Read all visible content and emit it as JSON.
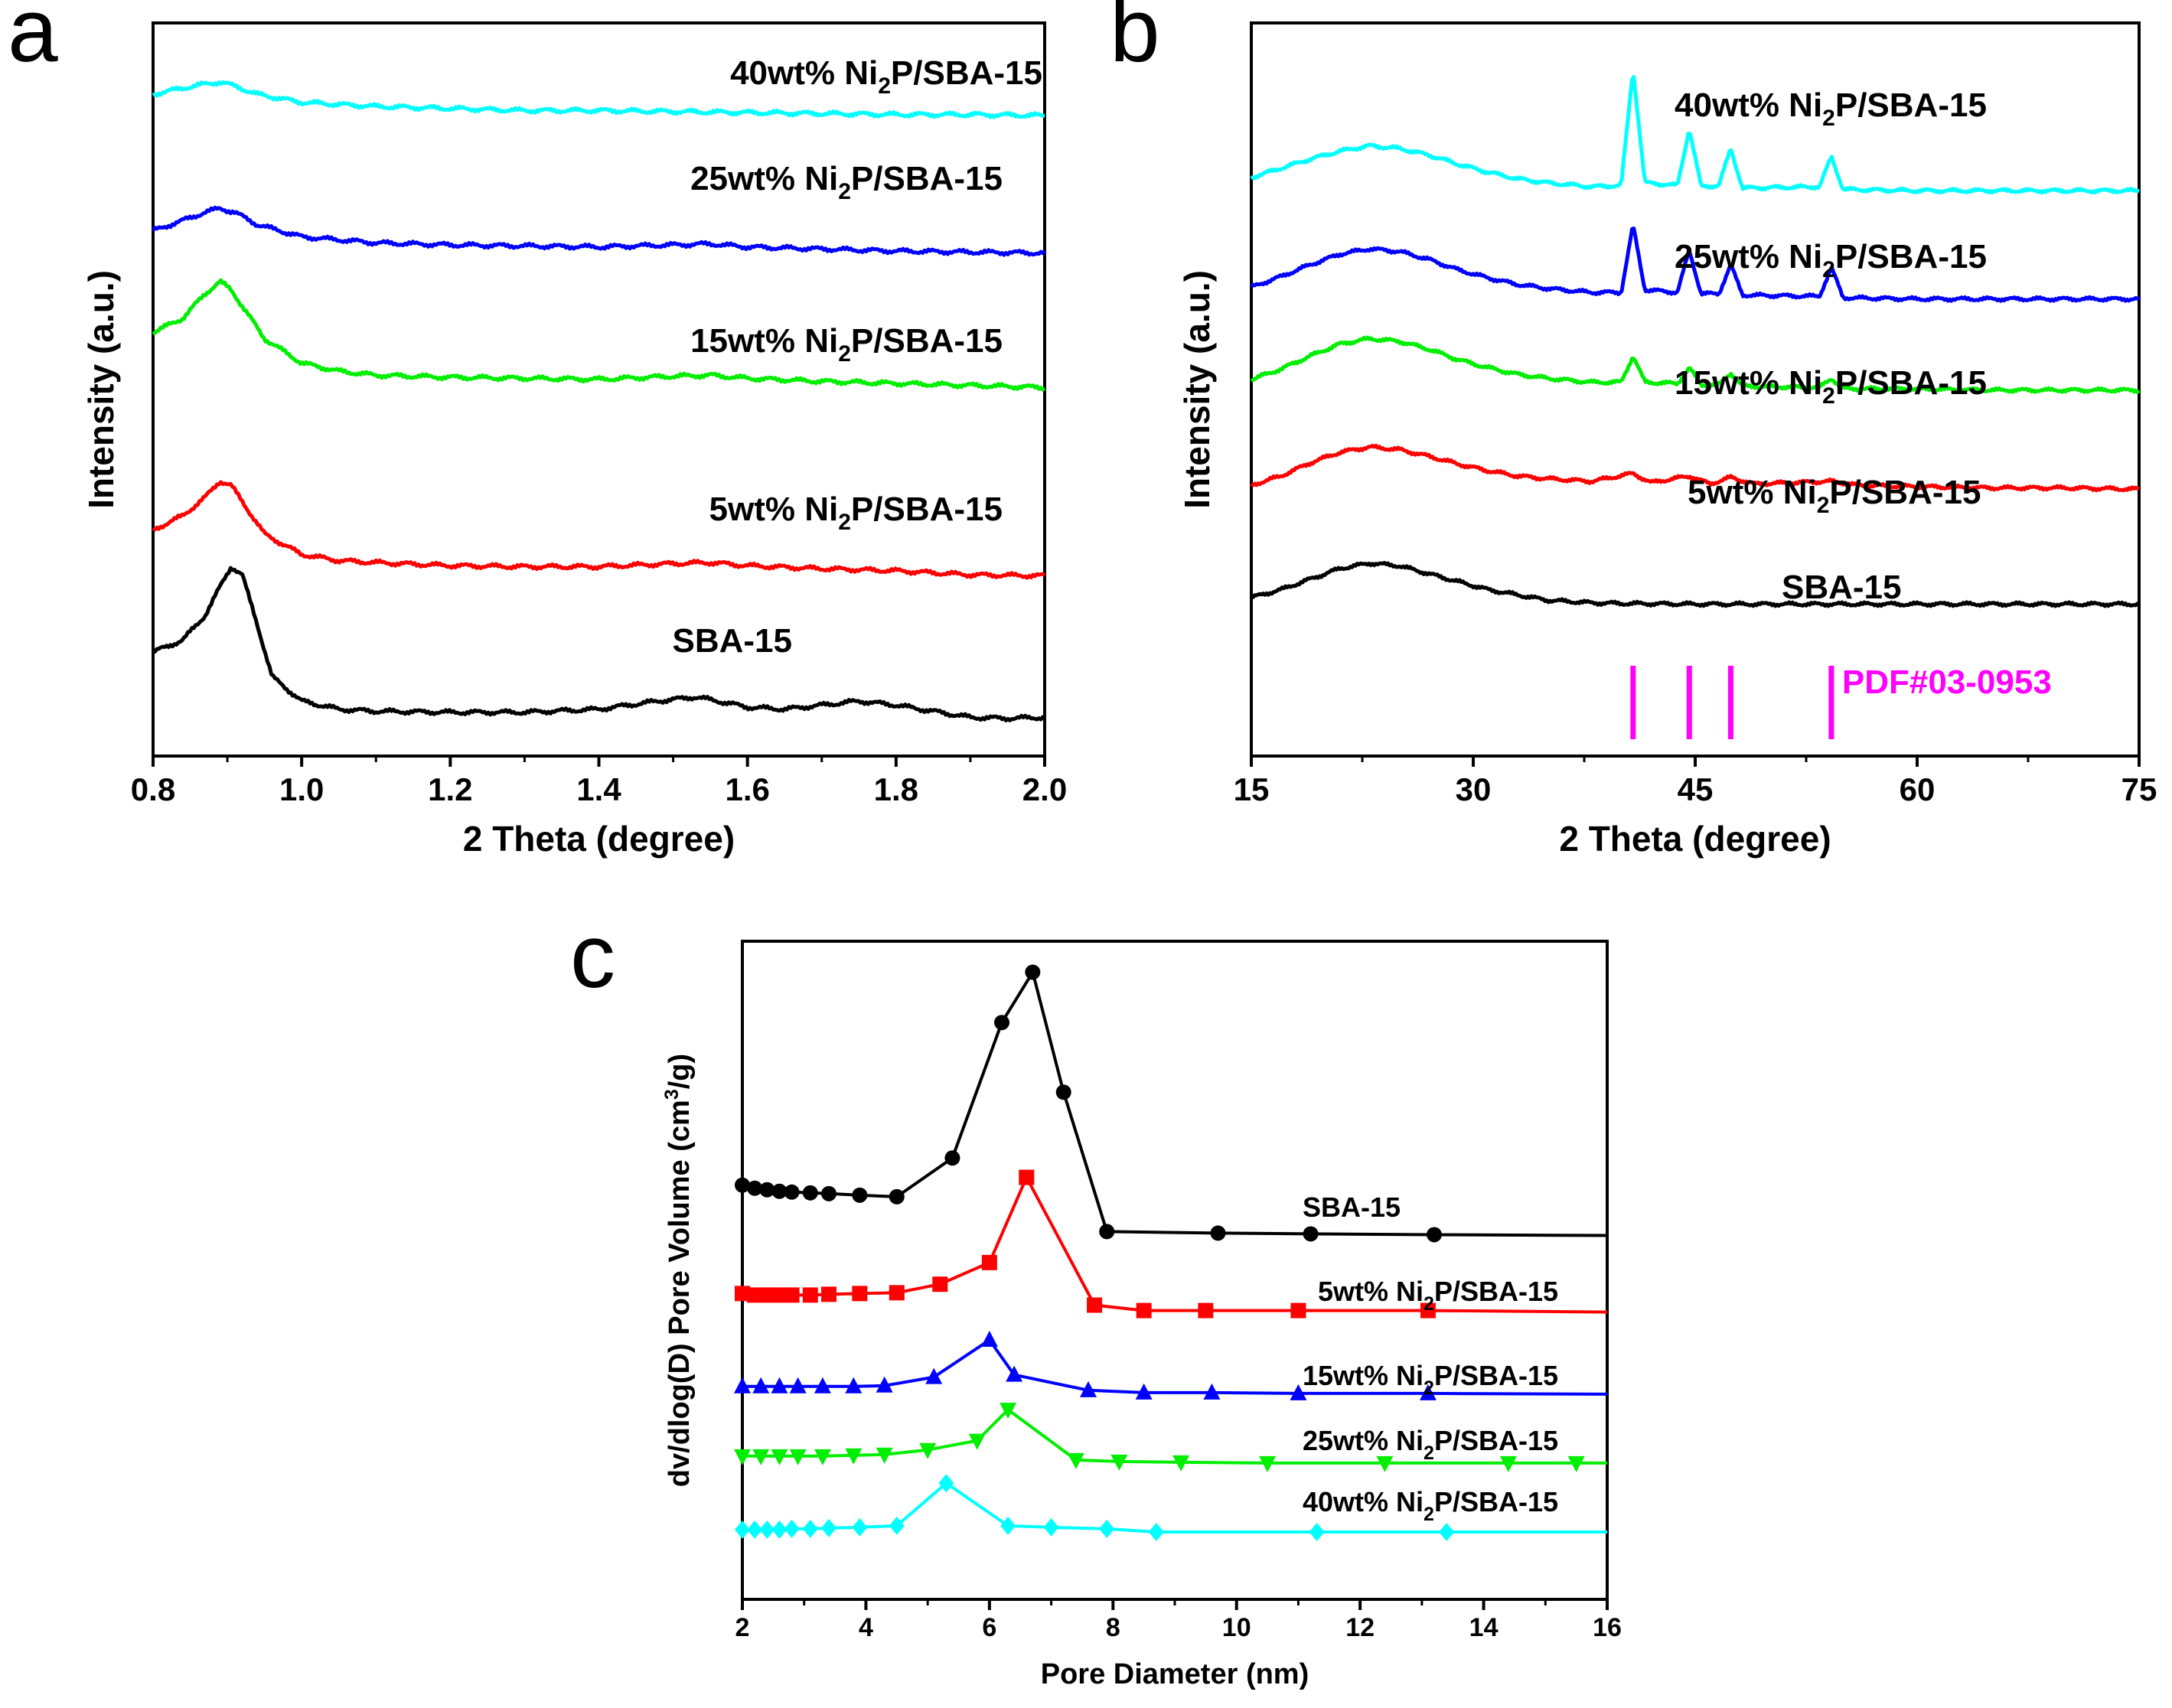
{
  "figure": {
    "panels": [
      {
        "letter": "a"
      },
      {
        "letter": "b"
      },
      {
        "letter": "c"
      }
    ]
  },
  "colors": {
    "SBA-15": "#000000",
    "5wt%": "#ff0000",
    "15wt%": "#00ee00",
    "25wt%": "#0000ff",
    "40wt%": "#00ffff",
    "pdf": "#ff00ff"
  },
  "chart_data": [
    {
      "panel": "a",
      "type": "line",
      "xlabel": "2 Theta (degree)",
      "ylabel": "Intensity (a.u.)",
      "xlim": [
        0.8,
        2.0
      ],
      "xticks": [
        "0.8",
        "1.0",
        "1.2",
        "1.4",
        "1.6",
        "1.8",
        "2.0"
      ],
      "y_units": "arbitrary (vertically offset)",
      "series": [
        {
          "label_pre": "",
          "label_sub": "",
          "label_post": "SBA-15",
          "color": "#000000",
          "x": [
            0.8,
            0.84,
            0.87,
            0.89,
            0.905,
            0.92,
            0.94,
            0.96,
            1.0,
            1.05,
            1.1,
            1.2,
            1.3,
            1.4,
            1.48,
            1.53,
            1.56,
            1.6,
            1.65,
            1.7,
            1.75,
            1.8,
            1.85,
            1.9,
            1.95,
            2.0
          ],
          "y": [
            0.36,
            0.42,
            0.54,
            0.68,
            0.78,
            0.74,
            0.5,
            0.24,
            0.12,
            0.08,
            0.07,
            0.065,
            0.065,
            0.08,
            0.12,
            0.14,
            0.12,
            0.09,
            0.08,
            0.1,
            0.12,
            0.1,
            0.07,
            0.04,
            0.035,
            0.04
          ]
        },
        {
          "label_pre": "5wt% Ni",
          "label_sub": "2",
          "label_post": "P/SBA-15",
          "color": "#ff0000",
          "x": [
            0.8,
            0.84,
            0.87,
            0.89,
            0.905,
            0.92,
            0.95,
            1.0,
            1.05,
            1.1,
            1.2,
            1.3,
            1.4,
            1.5,
            1.55,
            1.6,
            1.7,
            1.8,
            1.9,
            2.0
          ],
          "y": [
            0.96,
            1.03,
            1.12,
            1.2,
            1.18,
            1.1,
            0.94,
            0.84,
            0.81,
            0.8,
            0.785,
            0.78,
            0.78,
            0.795,
            0.8,
            0.785,
            0.77,
            0.76,
            0.74,
            0.735
          ]
        },
        {
          "label_pre": "15wt% Ni",
          "label_sub": "2",
          "label_post": "P/SBA-15",
          "color": "#00ee00",
          "x": [
            0.8,
            0.84,
            0.87,
            0.89,
            0.905,
            0.92,
            0.95,
            1.0,
            1.05,
            1.1,
            1.2,
            1.3,
            1.4,
            1.5,
            1.55,
            1.6,
            1.7,
            1.8,
            1.9,
            2.0
          ],
          "y": [
            1.93,
            2.0,
            2.12,
            2.18,
            2.14,
            2.06,
            1.9,
            1.78,
            1.74,
            1.72,
            1.71,
            1.705,
            1.7,
            1.715,
            1.72,
            1.705,
            1.69,
            1.68,
            1.67,
            1.66
          ]
        },
        {
          "label_pre": "25wt% Ni",
          "label_sub": "2",
          "label_post": "P/SBA-15",
          "color": "#0000ff",
          "x": [
            0.8,
            0.84,
            0.87,
            0.89,
            0.91,
            0.94,
            1.0,
            1.1,
            1.2,
            1.3,
            1.4,
            1.5,
            1.55,
            1.6,
            1.7,
            1.8,
            1.9,
            2.0
          ],
          "y": [
            2.43,
            2.48,
            2.52,
            2.54,
            2.52,
            2.46,
            2.4,
            2.37,
            2.36,
            2.355,
            2.35,
            2.36,
            2.365,
            2.35,
            2.34,
            2.33,
            2.325,
            2.32
          ]
        },
        {
          "label_pre": "40wt% Ni",
          "label_sub": "2",
          "label_post": "P/SBA-15",
          "color": "#00ffff",
          "x": [
            0.8,
            0.84,
            0.87,
            0.89,
            0.91,
            0.94,
            1.0,
            1.1,
            1.2,
            1.3,
            1.4,
            1.5,
            1.6,
            1.7,
            1.8,
            1.9,
            2.0
          ],
          "y": [
            3.1,
            3.13,
            3.15,
            3.16,
            3.14,
            3.1,
            3.06,
            3.04,
            3.03,
            3.02,
            3.02,
            3.015,
            3.01,
            3.005,
            3.0,
            3.0,
            2.995
          ]
        }
      ]
    },
    {
      "panel": "b",
      "type": "line",
      "xlabel": "2 Theta (degree)",
      "ylabel": "Intensity (a.u.)",
      "xlim": [
        15,
        75
      ],
      "xticks": [
        "15",
        "30",
        "45",
        "60",
        "75"
      ],
      "y_units": "arbitrary (vertically offset)",
      "reference": {
        "label": "PDF#03-0953",
        "color": "#ff00ff",
        "positions": [
          40.8,
          44.6,
          47.4,
          54.2
        ]
      },
      "series": [
        {
          "label_pre": "",
          "label_sub": "",
          "label_post": "SBA-15",
          "color": "#000000",
          "x": [
            15,
            17,
            19,
            21,
            23,
            25,
            27,
            29,
            31,
            33,
            35,
            38,
            40,
            45,
            50,
            55,
            60,
            65,
            70,
            75
          ],
          "y": [
            0.6,
            0.66,
            0.74,
            0.82,
            0.86,
            0.84,
            0.78,
            0.72,
            0.66,
            0.62,
            0.58,
            0.56,
            0.555,
            0.55,
            0.55,
            0.55,
            0.55,
            0.55,
            0.55,
            0.55
          ]
        },
        {
          "label_pre": "5wt% Ni",
          "label_sub": "2",
          "label_post": "P/SBA-15",
          "color": "#ff0000",
          "x": [
            15,
            17,
            19,
            21,
            23,
            25,
            27,
            29,
            31,
            33,
            35,
            38,
            40.8,
            42,
            44.6,
            46,
            47.4,
            49,
            54.2,
            56,
            60,
            65,
            70,
            75
          ],
          "y": [
            1.45,
            1.52,
            1.62,
            1.7,
            1.74,
            1.72,
            1.67,
            1.61,
            1.56,
            1.52,
            1.5,
            1.48,
            1.54,
            1.47,
            1.52,
            1.46,
            1.51,
            1.46,
            1.48,
            1.45,
            1.44,
            1.43,
            1.43,
            1.42
          ]
        },
        {
          "label_pre": "15wt% Ni",
          "label_sub": "2",
          "label_post": "P/SBA-15",
          "color": "#00ee00",
          "x": [
            15,
            17,
            19,
            21,
            23,
            25,
            27,
            29,
            31,
            33,
            35,
            38,
            40,
            40.8,
            41.6,
            43.8,
            44.6,
            45.4,
            46.6,
            47.4,
            48.2,
            53.4,
            54.2,
            55.0,
            60,
            65,
            70,
            75
          ],
          "y": [
            2.25,
            2.33,
            2.43,
            2.52,
            2.56,
            2.54,
            2.48,
            2.4,
            2.34,
            2.29,
            2.26,
            2.23,
            2.23,
            2.43,
            2.23,
            2.22,
            2.34,
            2.21,
            2.21,
            2.3,
            2.2,
            2.19,
            2.26,
            2.18,
            2.18,
            2.17,
            2.17,
            2.17
          ]
        },
        {
          "label_pre": "25wt% Ni",
          "label_sub": "2",
          "label_post": "P/SBA-15",
          "color": "#0000ff",
          "x": [
            15,
            17,
            19,
            21,
            23,
            25,
            27,
            29,
            31,
            33,
            35,
            38,
            40,
            40.8,
            41.6,
            43.8,
            44.6,
            45.4,
            46.6,
            47.4,
            48.2,
            53.4,
            54.2,
            55.0,
            60,
            65,
            70,
            75
          ],
          "y": [
            2.95,
            3.03,
            3.12,
            3.2,
            3.24,
            3.22,
            3.16,
            3.08,
            3.02,
            2.97,
            2.94,
            2.91,
            2.91,
            3.42,
            2.93,
            2.91,
            3.23,
            2.9,
            2.9,
            3.12,
            2.89,
            2.88,
            3.1,
            2.87,
            2.86,
            2.86,
            2.86,
            2.86
          ]
        },
        {
          "label_pre": "40wt% Ni",
          "label_sub": "2",
          "label_post": "P/SBA-15",
          "color": "#00ffff",
          "x": [
            15,
            17,
            19,
            21,
            23,
            25,
            27,
            29,
            31,
            33,
            35,
            38,
            40,
            40.8,
            41.6,
            43.8,
            44.6,
            45.4,
            46.6,
            47.4,
            48.2,
            53.4,
            54.2,
            55.0,
            60,
            65,
            70,
            75
          ],
          "y": [
            3.78,
            3.85,
            3.92,
            3.98,
            4.02,
            4.0,
            3.95,
            3.88,
            3.82,
            3.77,
            3.74,
            3.71,
            3.72,
            4.6,
            3.74,
            3.72,
            4.15,
            3.71,
            3.72,
            4.0,
            3.7,
            3.71,
            3.94,
            3.69,
            3.68,
            3.68,
            3.68,
            3.68
          ]
        }
      ]
    },
    {
      "panel": "c",
      "type": "line",
      "xlabel": "Pore Diameter (nm)",
      "ylabel_pre": "dv/dlog(D) Pore Volume (cm",
      "ylabel_sup": "3",
      "ylabel_post": "/g)",
      "xlim": [
        2,
        16
      ],
      "xticks": [
        "2",
        "4",
        "6",
        "8",
        "10",
        "12",
        "14",
        "16"
      ],
      "y_units": "arbitrary (vertically offset)",
      "series": [
        {
          "label_pre": "",
          "label_sub": "",
          "label_post": "SBA-15",
          "color": "#000000",
          "marker": "circle",
          "x": [
            2.0,
            2.2,
            2.4,
            2.6,
            2.8,
            3.1,
            3.4,
            3.9,
            4.5,
            5.4,
            6.2,
            6.7,
            7.2,
            7.9,
            9.7,
            11.2,
            13.2,
            16.0
          ],
          "y": [
            4.2,
            4.16,
            4.14,
            4.12,
            4.11,
            4.1,
            4.09,
            4.07,
            4.05,
            4.55,
            6.3,
            6.95,
            5.4,
            3.6,
            3.58,
            3.57,
            3.56,
            3.55
          ]
        },
        {
          "label_pre": "5wt% Ni",
          "label_sub": "2",
          "label_post": "P/SBA-15",
          "color": "#ff0000",
          "marker": "square",
          "x": [
            2.0,
            2.2,
            2.4,
            2.6,
            2.8,
            3.1,
            3.4,
            3.9,
            4.5,
            5.2,
            6.0,
            6.6,
            7.7,
            8.5,
            9.5,
            11.0,
            13.1,
            16.0
          ],
          "y": [
            2.8,
            2.78,
            2.78,
            2.78,
            2.78,
            2.78,
            2.79,
            2.8,
            2.81,
            2.92,
            3.2,
            4.3,
            2.65,
            2.58,
            2.58,
            2.58,
            2.58,
            2.56
          ]
        },
        {
          "label_pre": "15wt% Ni",
          "label_sub": "2",
          "label_post": "P/SBA-15",
          "color": "#0000ff",
          "marker": "triangle-up",
          "x": [
            2.0,
            2.3,
            2.6,
            2.9,
            3.3,
            3.8,
            4.3,
            5.1,
            6.0,
            6.4,
            7.6,
            8.5,
            9.6,
            11.0,
            13.1,
            16.0
          ],
          "y": [
            1.6,
            1.6,
            1.6,
            1.6,
            1.6,
            1.6,
            1.61,
            1.72,
            2.2,
            1.75,
            1.55,
            1.52,
            1.52,
            1.51,
            1.51,
            1.5
          ]
        },
        {
          "label_pre": "25wt% Ni",
          "label_sub": "2",
          "label_post": "P/SBA-15",
          "color": "#00ee00",
          "marker": "triangle-down",
          "x": [
            2.0,
            2.3,
            2.6,
            2.9,
            3.3,
            3.8,
            4.3,
            5.0,
            5.8,
            6.3,
            7.4,
            8.1,
            9.1,
            10.5,
            12.4,
            14.4,
            15.5,
            16.0
          ],
          "y": [
            0.7,
            0.7,
            0.7,
            0.7,
            0.7,
            0.71,
            0.72,
            0.78,
            0.9,
            1.3,
            0.65,
            0.63,
            0.62,
            0.61,
            0.61,
            0.61,
            0.61,
            0.61
          ]
        },
        {
          "label_pre": "40wt% Ni",
          "label_sub": "2",
          "label_post": "P/SBA-15",
          "color": "#00ffff",
          "marker": "diamond",
          "x": [
            2.0,
            2.2,
            2.4,
            2.6,
            2.8,
            3.1,
            3.4,
            3.9,
            4.5,
            5.3,
            6.3,
            7.0,
            7.9,
            8.7,
            11.3,
            13.4,
            16.0
          ],
          "y": [
            -0.25,
            -0.25,
            -0.25,
            -0.25,
            -0.24,
            -0.24,
            -0.23,
            -0.22,
            -0.2,
            0.35,
            -0.2,
            -0.22,
            -0.24,
            -0.28,
            -0.28,
            -0.28,
            -0.28
          ]
        }
      ]
    }
  ]
}
